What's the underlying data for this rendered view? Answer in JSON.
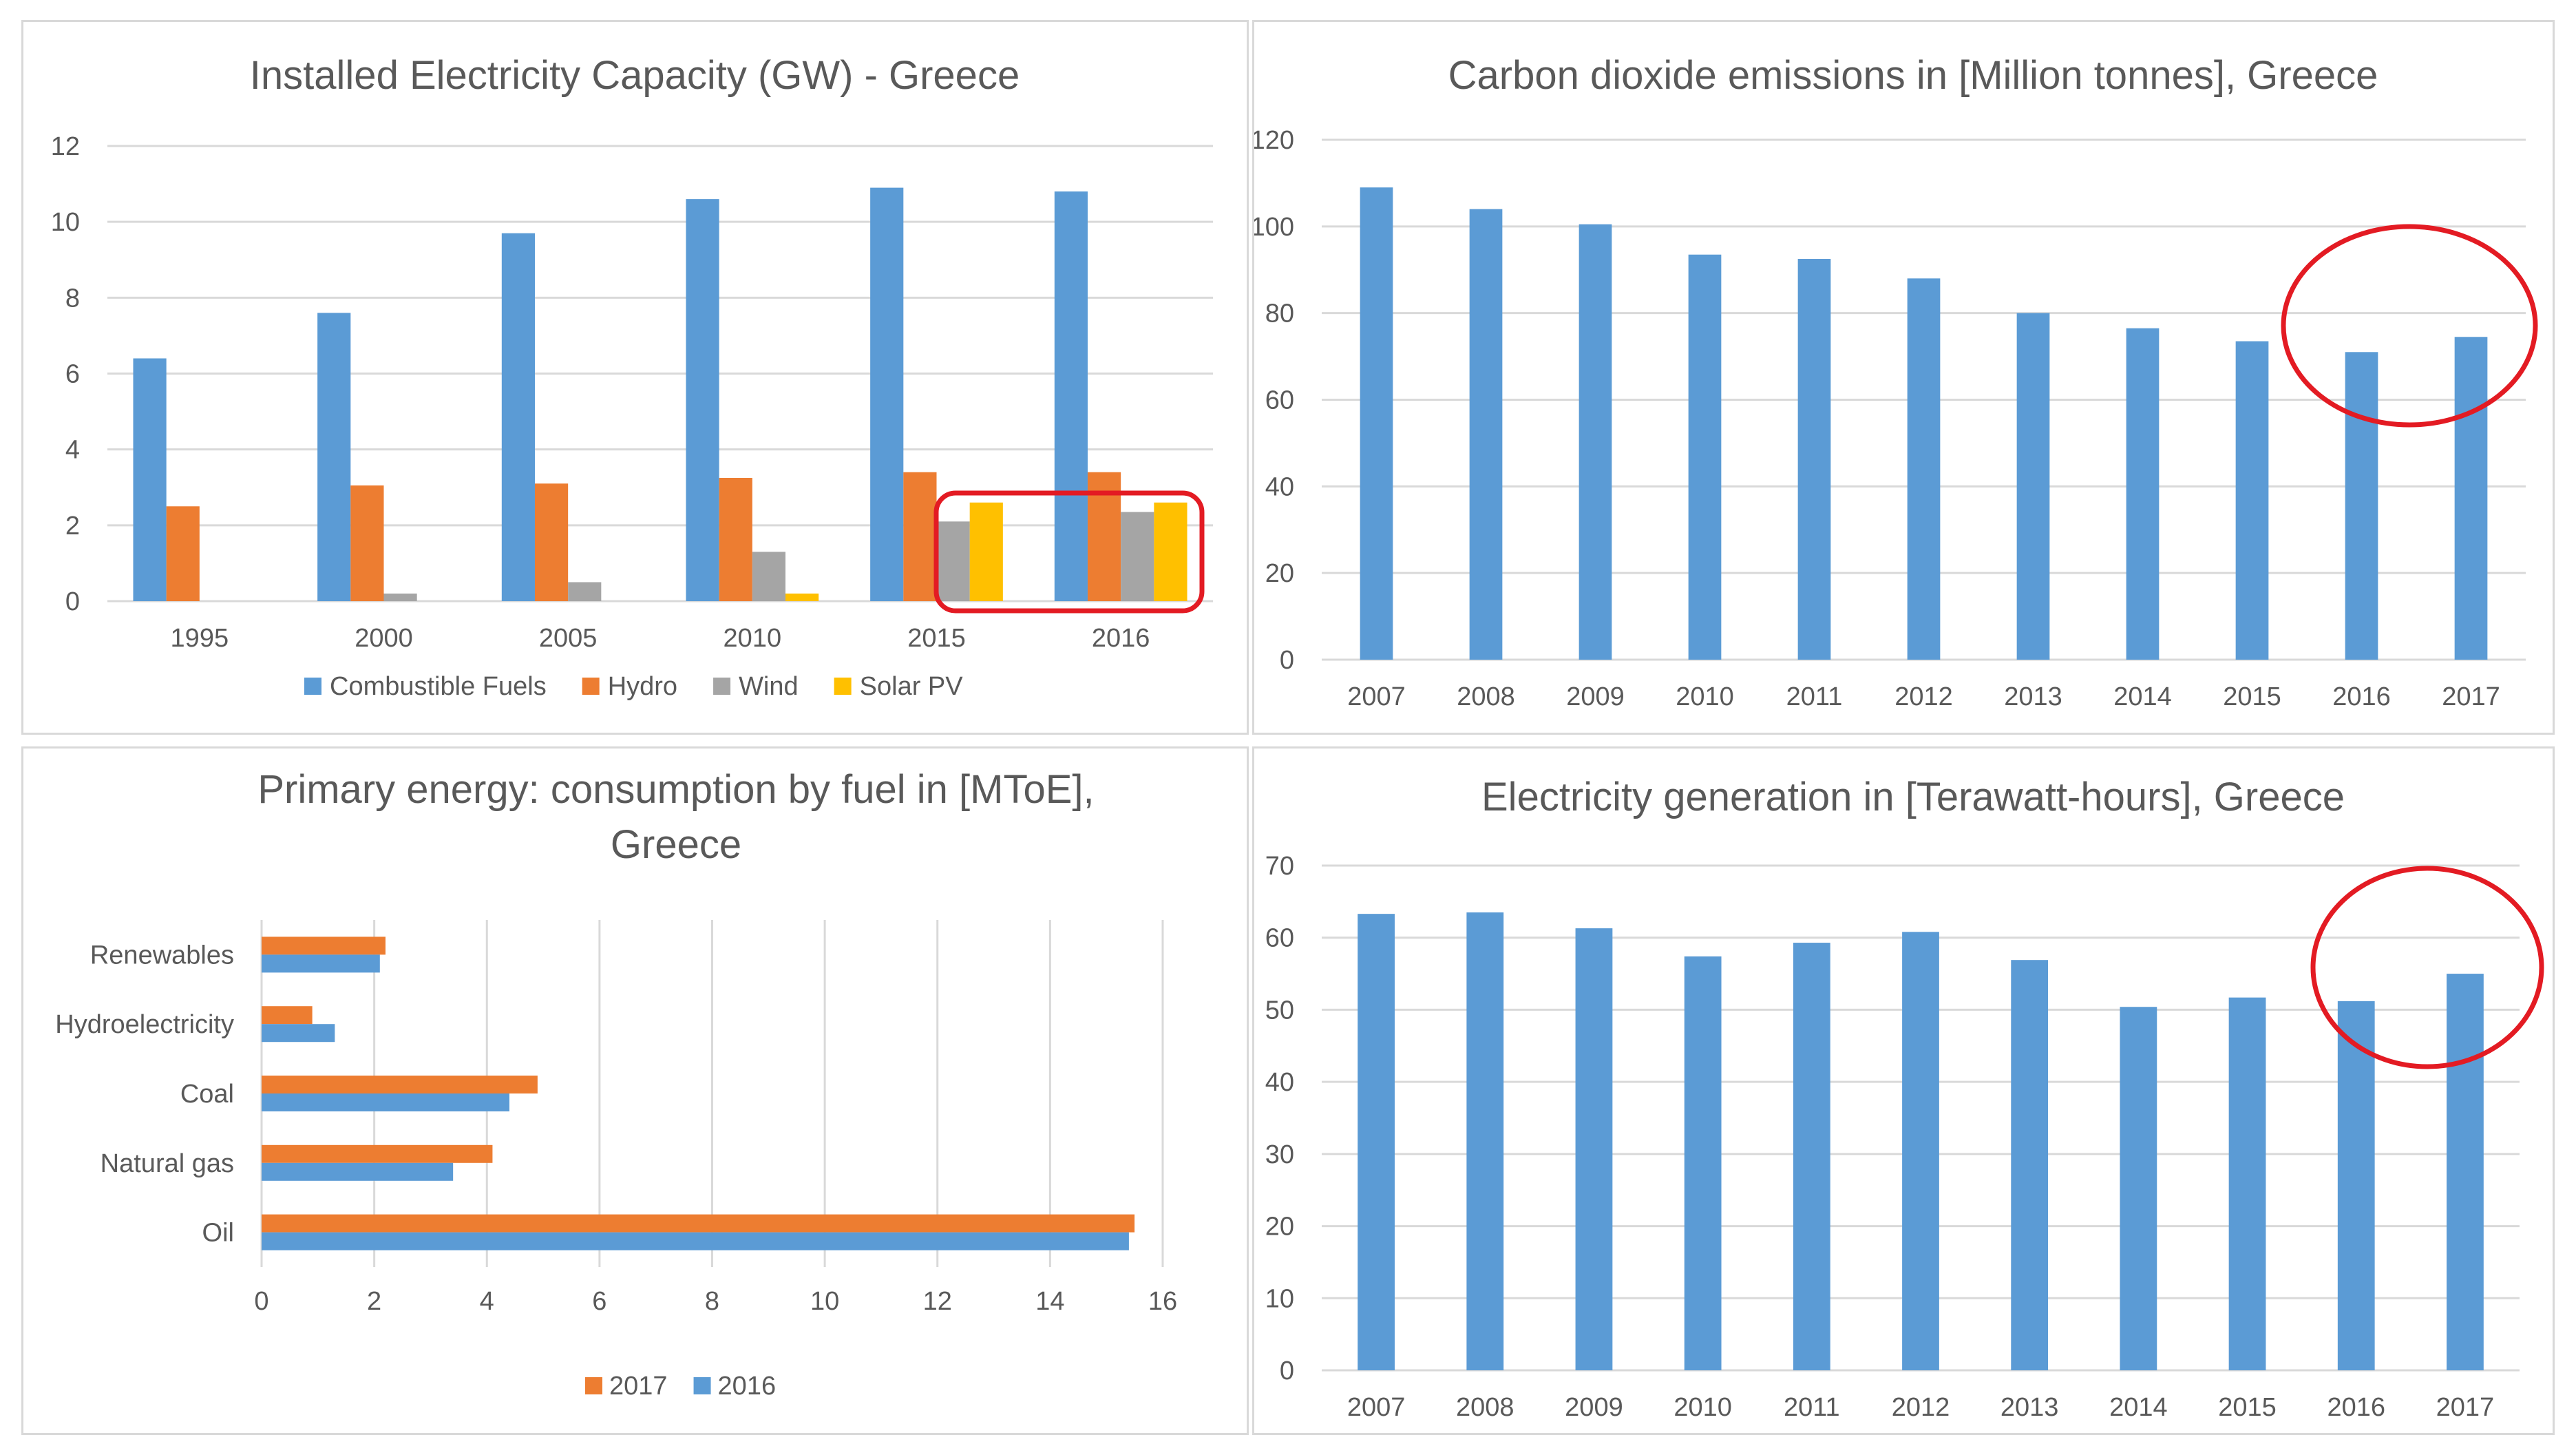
{
  "colors": {
    "blue": "#5b9bd5",
    "orange": "#ed7d31",
    "gray": "#a5a5a5",
    "yellow": "#ffc000",
    "highlight": "#e31b23",
    "grid": "#d9d9d9",
    "text": "#595959"
  },
  "chart_data": [
    {
      "id": "capacity",
      "type": "bar",
      "title": "Installed Electricity Capacity (GW) - Greece",
      "categories": [
        "1995",
        "2000",
        "2005",
        "2010",
        "2015",
        "2016"
      ],
      "series": [
        {
          "name": "Combustible Fuels",
          "color": "blue",
          "values": [
            6.4,
            7.6,
            9.7,
            10.6,
            10.9,
            10.8
          ]
        },
        {
          "name": "Hydro",
          "color": "orange",
          "values": [
            2.5,
            3.05,
            3.1,
            3.25,
            3.4,
            3.4
          ]
        },
        {
          "name": "Wind",
          "color": "gray",
          "values": [
            0.0,
            0.2,
            0.5,
            1.3,
            2.1,
            2.35
          ]
        },
        {
          "name": "Solar PV",
          "color": "yellow",
          "values": [
            0.0,
            0.0,
            0.0,
            0.2,
            2.6,
            2.6
          ]
        }
      ],
      "ylim": [
        0,
        12
      ],
      "yticks": [
        "0",
        "2",
        "4",
        "6",
        "8",
        "10",
        "12"
      ],
      "xlabel": "",
      "ylabel": "",
      "grid": true,
      "legend_position": "bottom",
      "annotation": "rounded red rectangle highlighting Wind and Solar PV bars for 2015 and 2016"
    },
    {
      "id": "co2",
      "type": "bar",
      "title": "Carbon dioxide emissions in [Million tonnes],  Greece",
      "categories": [
        "2007",
        "2008",
        "2009",
        "2010",
        "2011",
        "2012",
        "2013",
        "2014",
        "2015",
        "2016",
        "2017"
      ],
      "series": [
        {
          "name": "CO2 emissions",
          "color": "blue",
          "values": [
            109,
            104,
            100.5,
            93.5,
            92.5,
            88,
            80,
            76.5,
            73.5,
            71,
            74.5
          ]
        }
      ],
      "ylim": [
        0,
        120
      ],
      "yticks": [
        "0",
        "20",
        "40",
        "60",
        "80",
        "100",
        "120"
      ],
      "xlabel": "",
      "ylabel": "",
      "grid": true,
      "annotation": "red circle highlighting 2016 and 2017"
    },
    {
      "id": "energy",
      "type": "bar",
      "orientation": "horizontal",
      "title": [
        "Primary energy: consumption by fuel in [MToE],",
        "Greece"
      ],
      "categories": [
        "Renewables",
        "Hydroelectricity",
        "Coal",
        "Natural gas",
        "Oil"
      ],
      "series": [
        {
          "name": "2017",
          "color": "orange",
          "values": [
            2.2,
            0.9,
            4.9,
            4.1,
            15.5
          ]
        },
        {
          "name": "2016",
          "color": "blue",
          "values": [
            2.1,
            1.3,
            4.4,
            3.4,
            15.4
          ]
        }
      ],
      "xlim": [
        0,
        16
      ],
      "xticks": [
        "0",
        "2",
        "4",
        "6",
        "8",
        "10",
        "12",
        "14",
        "16"
      ],
      "xlabel": "",
      "ylabel": "",
      "grid": true,
      "legend_position": "bottom"
    },
    {
      "id": "electricity",
      "type": "bar",
      "title": "Electricity generation in [Terawatt-hours], Greece",
      "categories": [
        "2007",
        "2008",
        "2009",
        "2010",
        "2011",
        "2012",
        "2013",
        "2014",
        "2015",
        "2016",
        "2017"
      ],
      "series": [
        {
          "name": "Electricity generation",
          "color": "blue",
          "values": [
            63.3,
            63.5,
            61.3,
            57.4,
            59.3,
            60.8,
            56.9,
            50.4,
            51.7,
            51.2,
            55
          ]
        }
      ],
      "ylim": [
        0,
        70
      ],
      "yticks": [
        "0",
        "10",
        "20",
        "30",
        "40",
        "50",
        "60",
        "70"
      ],
      "xlabel": "",
      "ylabel": "",
      "grid": true,
      "annotation": "red circle highlighting 2016 and 2017"
    }
  ]
}
